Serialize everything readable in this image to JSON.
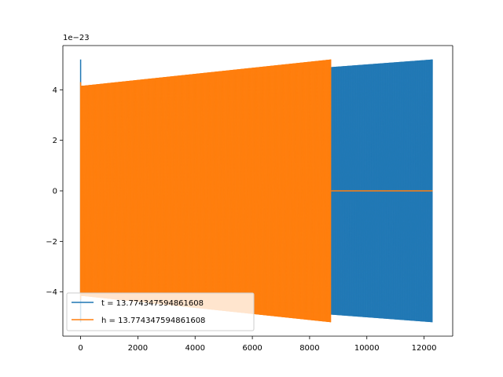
{
  "chart_data": {
    "type": "line",
    "title": "",
    "xlabel": "",
    "ylabel": "",
    "y_offset_label": "1e−23",
    "xlim": [
      -620,
      13000
    ],
    "ylim": [
      -5.75,
      5.75
    ],
    "xticks": [
      0,
      2000,
      4000,
      6000,
      8000,
      10000,
      12000
    ],
    "xtick_labels": [
      "0",
      "2000",
      "4000",
      "6000",
      "8000",
      "10000",
      "12000"
    ],
    "yticks": [
      -4,
      -2,
      0,
      2,
      4
    ],
    "ytick_labels": [
      "−4",
      "−2",
      "0",
      "2",
      "4"
    ],
    "grid": false,
    "legend_position": "lower-left",
    "series": [
      {
        "name": "t = 13.774347594861608",
        "color": "#1f77b4",
        "x_end": 12300,
        "initial_spike": 5.2,
        "amplitude_start": 4.15,
        "amplitude_end": 5.2,
        "style": "dense oscillation"
      },
      {
        "name": "h = 13.774347594861608",
        "color": "#ff7f0e",
        "x_end": 8750,
        "initial_spike": 4.3,
        "amplitude_start": 4.15,
        "amplitude_end": 5.2,
        "zero_until": 12300,
        "style": "dense oscillation"
      }
    ]
  }
}
